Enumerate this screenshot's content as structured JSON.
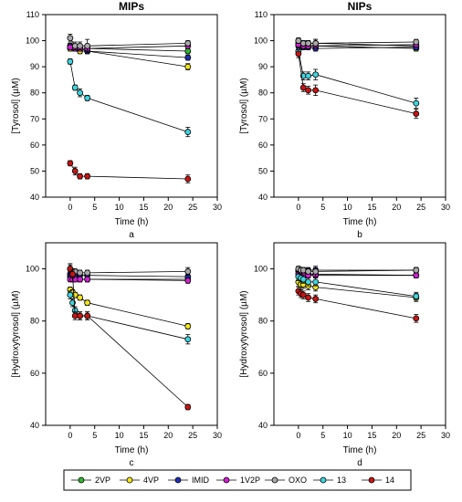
{
  "chart_data": [
    {
      "type": "scatter",
      "panel_label": "a",
      "title": "MIPs",
      "xlabel": "Time (h)",
      "ylabel": "[Tyrosol] (µM)",
      "xlim": [
        -5,
        30
      ],
      "ylim": [
        40,
        110
      ],
      "xticks": [
        0,
        5,
        10,
        15,
        20,
        25,
        30
      ],
      "yticks": [
        40,
        50,
        60,
        70,
        80,
        90,
        100,
        110
      ],
      "x": [
        0,
        1,
        2,
        3.5,
        24
      ],
      "series": [
        {
          "name": "2VP",
          "values": [
            98,
            97,
            97,
            97,
            96
          ],
          "err": [
            1,
            1,
            1,
            1,
            1
          ]
        },
        {
          "name": "4VP",
          "values": [
            97,
            97,
            96,
            96,
            90
          ],
          "err": [
            1,
            1,
            1,
            1,
            1.2
          ]
        },
        {
          "name": "IMID",
          "values": [
            98,
            97,
            97,
            96,
            93.5
          ],
          "err": [
            1,
            1,
            1,
            1,
            1
          ]
        },
        {
          "name": "1V2P",
          "values": [
            97.5,
            97,
            97,
            97,
            98
          ],
          "err": [
            1,
            1,
            1,
            1,
            1
          ]
        },
        {
          "name": "OXO",
          "values": [
            101,
            98,
            98,
            98,
            99
          ],
          "err": [
            1.5,
            1.5,
            1.5,
            2.5,
            1
          ]
        },
        {
          "name": "13",
          "values": [
            92,
            82,
            80,
            78,
            65
          ],
          "err": [
            1,
            1,
            1.5,
            1,
            1.8
          ]
        },
        {
          "name": "14",
          "values": [
            53,
            50,
            48,
            48,
            47
          ],
          "err": [
            1,
            1.5,
            1,
            1,
            1.5
          ]
        }
      ]
    },
    {
      "type": "scatter",
      "panel_label": "b",
      "title": "NIPs",
      "xlabel": "Time (h)",
      "ylabel": "[Tyrosol] (µM)",
      "xlim": [
        -5,
        30
      ],
      "ylim": [
        40,
        110
      ],
      "xticks": [
        0,
        5,
        10,
        15,
        20,
        25,
        30
      ],
      "yticks": [
        40,
        50,
        60,
        70,
        80,
        90,
        100,
        110
      ],
      "x": [
        0,
        1,
        2,
        3.5,
        24
      ],
      "series": [
        {
          "name": "2VP",
          "values": [
            99,
            98,
            98,
            98,
            97
          ],
          "err": [
            1,
            1,
            1,
            1,
            1
          ]
        },
        {
          "name": "4VP",
          "values": [
            100,
            99,
            99,
            99,
            98
          ],
          "err": [
            1,
            1,
            1,
            1.5,
            1
          ]
        },
        {
          "name": "IMID",
          "values": [
            98,
            97.5,
            97.5,
            97,
            97.5
          ],
          "err": [
            1,
            1,
            1,
            1,
            1
          ]
        },
        {
          "name": "1V2P",
          "values": [
            98.5,
            98,
            98,
            98,
            98.5
          ],
          "err": [
            1,
            1,
            1,
            1,
            1
          ]
        },
        {
          "name": "OXO",
          "values": [
            100,
            99,
            99,
            99,
            99.5
          ],
          "err": [
            1,
            1,
            1,
            1.5,
            1
          ]
        },
        {
          "name": "13",
          "values": [
            96,
            86.5,
            86.5,
            87,
            76
          ],
          "err": [
            1.5,
            1.5,
            1.5,
            2,
            2
          ]
        },
        {
          "name": "14",
          "values": [
            95,
            82,
            81,
            81,
            72
          ],
          "err": [
            1.5,
            1.5,
            1.5,
            2,
            1.8
          ]
        }
      ]
    },
    {
      "type": "scatter",
      "panel_label": "c",
      "title": "",
      "xlabel": "Time (h)",
      "ylabel": "[Hydroxytyrosol] (µM)",
      "xlim": [
        -5,
        30
      ],
      "ylim": [
        40,
        110
      ],
      "xticks": [
        0,
        5,
        10,
        15,
        20,
        25,
        30
      ],
      "yticks": [
        40,
        60,
        80,
        100
      ],
      "x": [
        0,
        0.5,
        1,
        2,
        3.5,
        24
      ],
      "series": [
        {
          "name": "2VP",
          "values": [
            97,
            96.5,
            96.5,
            96,
            96,
            96
          ],
          "err": [
            1,
            1,
            1,
            1,
            1,
            1
          ]
        },
        {
          "name": "4VP",
          "values": [
            92,
            91,
            90,
            89,
            87,
            78
          ],
          "err": [
            1,
            1,
            1,
            1,
            1,
            1
          ]
        },
        {
          "name": "IMID",
          "values": [
            98,
            97.5,
            97.5,
            97.5,
            97.5,
            97
          ],
          "err": [
            1,
            1,
            1,
            1,
            1,
            1
          ]
        },
        {
          "name": "1V2P",
          "values": [
            96,
            96,
            96,
            96,
            96,
            95.5
          ],
          "err": [
            1,
            1,
            1,
            1,
            1,
            1
          ]
        },
        {
          "name": "OXO",
          "values": [
            100,
            99,
            99,
            98.5,
            98.5,
            99
          ],
          "err": [
            1.5,
            1,
            1,
            1,
            1,
            1.5
          ]
        },
        {
          "name": "13",
          "values": [
            90,
            87,
            84,
            82,
            82,
            73
          ],
          "err": [
            1.5,
            1.5,
            1.5,
            1.5,
            1.5,
            1.8
          ]
        },
        {
          "name": "14",
          "values": [
            100,
            98,
            82,
            82,
            82,
            47
          ],
          "err": [
            2,
            1.5,
            1.5,
            1.5,
            1.5,
            1
          ]
        }
      ]
    },
    {
      "type": "scatter",
      "panel_label": "d",
      "title": "",
      "xlabel": "Time (h)",
      "ylabel": "[Hydroxytyrosol] (µM)",
      "xlim": [
        -5,
        30
      ],
      "ylim": [
        40,
        110
      ],
      "xticks": [
        0,
        5,
        10,
        15,
        20,
        25,
        30
      ],
      "yticks": [
        40,
        60,
        80,
        100
      ],
      "x": [
        0,
        0.5,
        1,
        2,
        3.5,
        24
      ],
      "series": [
        {
          "name": "2VP",
          "values": [
            99,
            98.5,
            98.5,
            98,
            98,
            97.5
          ],
          "err": [
            1,
            1,
            1,
            1,
            1,
            1
          ]
        },
        {
          "name": "4VP",
          "values": [
            95,
            94,
            94,
            93.5,
            93,
            89
          ],
          "err": [
            1.5,
            1.5,
            1.5,
            1.5,
            1.5,
            1.5
          ]
        },
        {
          "name": "IMID",
          "values": [
            99.5,
            99.5,
            99.5,
            99.5,
            99.5,
            99.5
          ],
          "err": [
            1,
            1,
            1,
            1,
            1,
            1
          ]
        },
        {
          "name": "1V2P",
          "values": [
            98,
            97.5,
            97.5,
            97.5,
            97.5,
            97.5
          ],
          "err": [
            1,
            1,
            1,
            1,
            1,
            1
          ]
        },
        {
          "name": "OXO",
          "values": [
            100,
            99.5,
            99.5,
            99,
            99,
            99.5
          ],
          "err": [
            1,
            1,
            1,
            1,
            2,
            1
          ]
        },
        {
          "name": "13",
          "values": [
            97,
            96.5,
            96,
            95,
            95,
            89.5
          ],
          "err": [
            1.5,
            1.5,
            1.5,
            1.5,
            1.5,
            1.5
          ]
        },
        {
          "name": "14",
          "values": [
            91.5,
            90.5,
            90,
            89,
            88.5,
            81
          ],
          "err": [
            1.5,
            1.5,
            1.5,
            1.5,
            1.5,
            1.5
          ]
        }
      ]
    }
  ],
  "legend": {
    "placement": "bottom",
    "entries": [
      {
        "name": "2VP",
        "color": "#2eb82e"
      },
      {
        "name": "4VP",
        "color": "#f5e61a"
      },
      {
        "name": "IMID",
        "color": "#1f2fb0"
      },
      {
        "name": "1V2P",
        "color": "#d21fd2"
      },
      {
        "name": "OXO",
        "color": "#a8a8a8"
      },
      {
        "name": "13",
        "color": "#3dd6e0"
      },
      {
        "name": "14",
        "color": "#c81414"
      }
    ]
  }
}
